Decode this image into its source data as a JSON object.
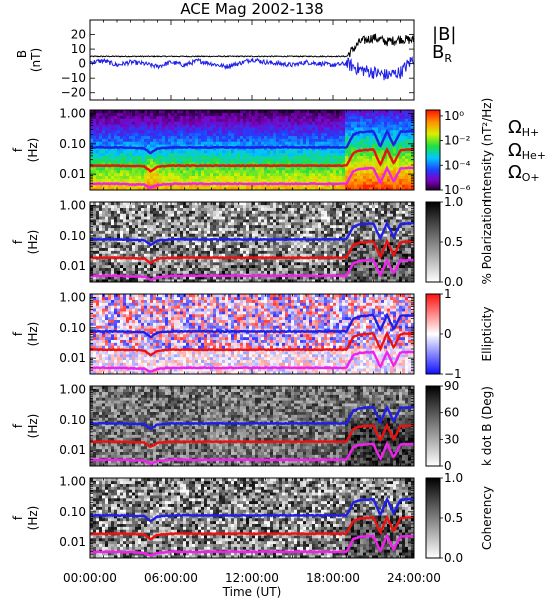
{
  "figure": {
    "title": "ACE Mag 2002-138",
    "xlabel": "Time (UT)",
    "x_tick_labels": [
      "00:00:00",
      "06:00:00",
      "12:00:00",
      "18:00:00",
      "24:00:00"
    ]
  },
  "colors": {
    "B_total": "#000000",
    "B_R": "#1f1fe6",
    "H_plus": "#1f1fe6",
    "He_plus": "#ee1111",
    "O_plus": "#ee22ee"
  },
  "chart_data": [
    {
      "type": "line",
      "panel": "magnetic-field",
      "ylabel": "B (nT)",
      "ylim": [
        -25,
        30
      ],
      "y_ticks": [
        -20,
        -10,
        0,
        10,
        20
      ],
      "xlim_hours": [
        0,
        24
      ],
      "x_hours": [
        0,
        1,
        2,
        3,
        4,
        5,
        6,
        7,
        8,
        9,
        10,
        11,
        12,
        13,
        14,
        15,
        16,
        17,
        18,
        19,
        20,
        21,
        22,
        23,
        24
      ],
      "legend": [
        "|B|",
        "B_R"
      ],
      "series": [
        {
          "name": "|B|",
          "values": [
            5,
            5,
            5,
            5,
            5,
            5,
            5,
            5,
            5,
            5,
            5,
            5,
            5,
            5,
            5,
            5,
            5,
            5,
            5,
            5,
            15,
            18,
            15,
            17,
            16
          ]
        },
        {
          "name": "B_R",
          "values": [
            1,
            2,
            -1,
            1,
            0,
            -2,
            1,
            -1,
            2,
            0,
            -2,
            0,
            3,
            1,
            0,
            -1,
            1,
            0,
            -1,
            0,
            -4,
            -6,
            -8,
            -6,
            4
          ]
        }
      ]
    },
    {
      "type": "heatmap",
      "panel": "power-spectrum",
      "ylabel": "f (Hz)",
      "y_scale": "log",
      "ylim": [
        0.003,
        1.3
      ],
      "y_tick_labels": [
        "0.01",
        "0.10",
        "1.00"
      ],
      "colorbar_label": "Intensity (nT²/Hz)",
      "colorbar_range": [
        1e-06,
        3
      ],
      "colorbar_ticks": [
        "10⁻⁶",
        "10⁻⁴",
        "10⁻²",
        "10⁰"
      ],
      "legend": [
        "ΩH+",
        "ΩHe+",
        "ΩO+"
      ]
    },
    {
      "type": "heatmap",
      "panel": "polarization",
      "ylabel": "f (Hz)",
      "y_scale": "log",
      "ylim": [
        0.003,
        1.3
      ],
      "y_tick_labels": [
        "0.01",
        "0.10",
        "1.00"
      ],
      "colorbar_label": "% Polarization",
      "colorbar_range": [
        0,
        1
      ],
      "colorbar_ticks": [
        "0.0",
        "0.5",
        "1.0"
      ]
    },
    {
      "type": "heatmap",
      "panel": "ellipticity",
      "ylabel": "f (Hz)",
      "y_scale": "log",
      "ylim": [
        0.003,
        1.3
      ],
      "y_tick_labels": [
        "0.01",
        "0.10",
        "1.00"
      ],
      "colorbar_label": "Ellipticity",
      "colorbar_range": [
        -1,
        1
      ],
      "colorbar_ticks": [
        "−1",
        "0",
        "1"
      ]
    },
    {
      "type": "heatmap",
      "panel": "wave-normal-angle",
      "ylabel": "f (Hz)",
      "y_scale": "log",
      "ylim": [
        0.003,
        1.3
      ],
      "y_tick_labels": [
        "0.01",
        "0.10",
        "1.00"
      ],
      "colorbar_label": "k dot B (Deg)",
      "colorbar_range": [
        0,
        90
      ],
      "colorbar_ticks": [
        "0",
        "30",
        "60",
        "90"
      ]
    },
    {
      "type": "heatmap",
      "panel": "coherency",
      "ylabel": "f (Hz)",
      "y_scale": "log",
      "ylim": [
        0.003,
        1.3
      ],
      "y_tick_labels": [
        "0.01",
        "0.10",
        "1.00"
      ],
      "colorbar_label": "Coherency",
      "colorbar_range": [
        0,
        1
      ],
      "colorbar_ticks": [
        "0.0",
        "0.5",
        "1.0"
      ]
    }
  ],
  "gyrofrequency_lines": {
    "x_hours": [
      0,
      1,
      2,
      3,
      4,
      4.5,
      5,
      6,
      8,
      10,
      12,
      14,
      16,
      18,
      19,
      19.5,
      20,
      21,
      21.5,
      22,
      22.5,
      23,
      24
    ],
    "H_plus": [
      0.076,
      0.076,
      0.076,
      0.074,
      0.072,
      0.05,
      0.07,
      0.076,
      0.076,
      0.076,
      0.076,
      0.076,
      0.076,
      0.076,
      0.076,
      0.2,
      0.24,
      0.26,
      0.08,
      0.26,
      0.09,
      0.25,
      0.26
    ],
    "He_plus": [
      0.019,
      0.019,
      0.019,
      0.0185,
      0.018,
      0.0125,
      0.0175,
      0.019,
      0.019,
      0.019,
      0.019,
      0.019,
      0.019,
      0.019,
      0.019,
      0.05,
      0.06,
      0.065,
      0.02,
      0.065,
      0.0225,
      0.0625,
      0.065
    ],
    "O_plus": [
      0.0048,
      0.0048,
      0.0048,
      0.0046,
      0.0045,
      0.0035,
      0.0044,
      0.0048,
      0.0048,
      0.0048,
      0.0048,
      0.0048,
      0.0048,
      0.0048,
      0.0048,
      0.0125,
      0.015,
      0.016,
      0.005,
      0.016,
      0.0056,
      0.0156,
      0.016
    ]
  }
}
